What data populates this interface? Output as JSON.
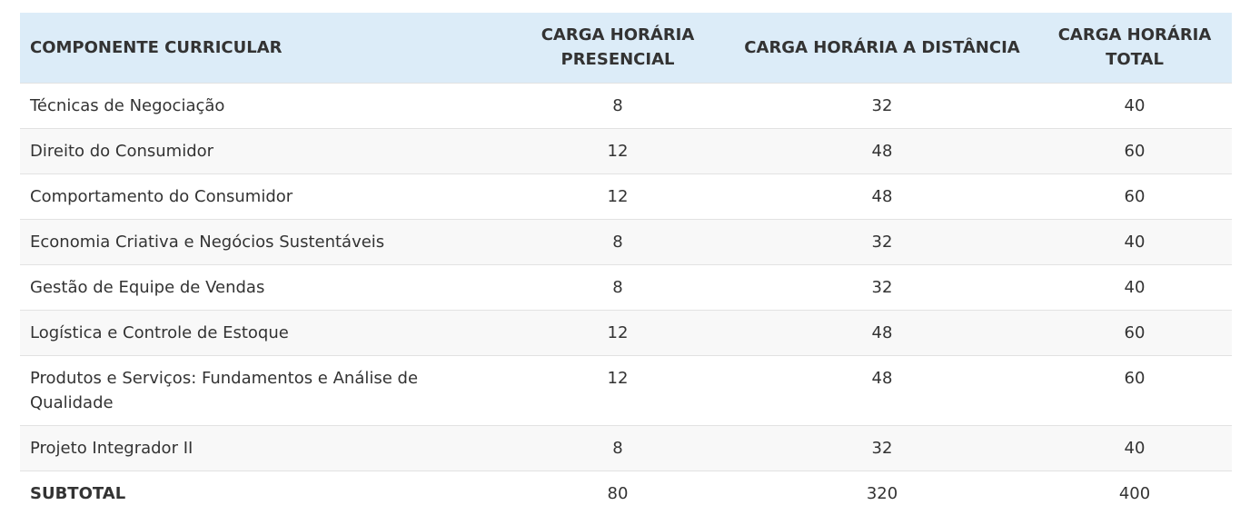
{
  "table": {
    "headers": [
      "COMPONENTE CURRICULAR",
      "CARGA HORÁRIA PRESENCIAL",
      "CARGA HORÁRIA A DISTÂNCIA",
      "CARGA HORÁRIA TOTAL"
    ],
    "rows": [
      [
        "Técnicas de Negociação",
        "8",
        "32",
        "40"
      ],
      [
        "Direito do Consumidor",
        "12",
        "48",
        "60"
      ],
      [
        "Comportamento do Consumidor",
        "12",
        "48",
        "60"
      ],
      [
        "Economia Criativa e Negócios Sustentáveis",
        "8",
        "32",
        "40"
      ],
      [
        "Gestão de Equipe de Vendas",
        "8",
        "32",
        "40"
      ],
      [
        "Logística e Controle de Estoque",
        "12",
        "48",
        "60"
      ],
      [
        "Produtos e Serviços: Fundamentos e Análise de Qualidade",
        "12",
        "48",
        "60"
      ],
      [
        "Projeto Integrador II",
        "8",
        "32",
        "40"
      ]
    ],
    "subtotal": [
      "SUBTOTAL",
      "80",
      "320",
      "400"
    ]
  },
  "colors": {
    "header_bg": "#dcecf8",
    "row_alt_bg": "#f8f8f8",
    "border": "#e2e2e2",
    "text": "#333333"
  }
}
